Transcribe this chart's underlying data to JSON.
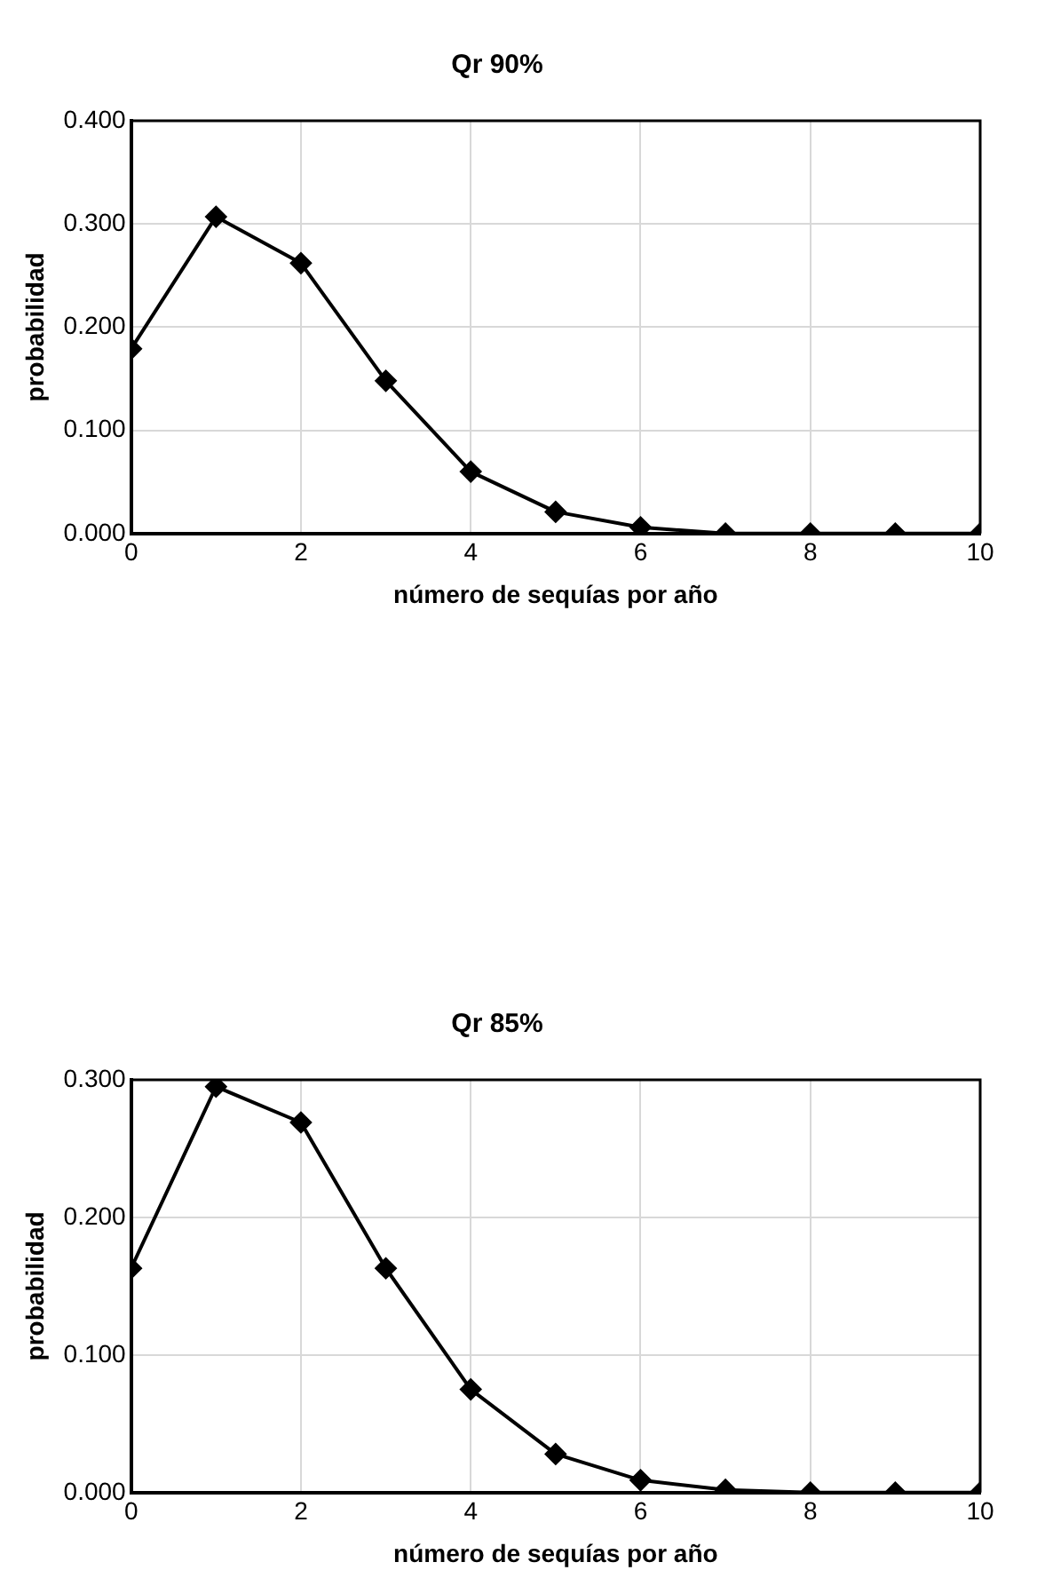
{
  "chart_data": [
    {
      "type": "line",
      "title": "Qr 90%",
      "xlabel": "número de sequías por año",
      "ylabel": "probabilidad",
      "x": [
        0,
        1,
        2,
        3,
        4,
        5,
        6,
        7,
        8,
        9,
        10
      ],
      "series": [
        {
          "color": "#000000",
          "values": [
            0.179,
            0.307,
            0.262,
            0.148,
            0.06,
            0.021,
            0.006,
            0,
            0,
            0,
            0
          ]
        }
      ],
      "xlim": [
        0,
        10
      ],
      "xticks": [
        0,
        2,
        4,
        6,
        8,
        10
      ],
      "ylim": [
        0,
        0.4
      ],
      "yticks": [
        {
          "value": 0,
          "label": "0.000"
        },
        {
          "value": 0.1,
          "label": "0.100"
        },
        {
          "value": 0.2,
          "label": "0.200"
        },
        {
          "value": 0.3,
          "label": "0.300"
        },
        {
          "value": 0.4,
          "label": "0.400"
        }
      ],
      "grid": true,
      "marker": "diamond",
      "line_style": "solid"
    },
    {
      "type": "line",
      "title": "Qr 85%",
      "xlabel": "número de sequías por año",
      "ylabel": "probabilidad",
      "x": [
        0,
        1,
        2,
        3,
        4,
        5,
        6,
        7,
        8,
        9,
        10
      ],
      "series": [
        {
          "color": "#000000",
          "values": [
            0.163,
            0.295,
            0.269,
            0.163,
            0.075,
            0.028,
            0.009,
            0.002,
            0,
            0,
            0
          ]
        }
      ],
      "xlim": [
        0,
        10
      ],
      "xticks": [
        0,
        2,
        4,
        6,
        8,
        10
      ],
      "ylim": [
        0,
        0.3
      ],
      "yticks": [
        {
          "value": 0,
          "label": "0.000"
        },
        {
          "value": 0.1,
          "label": "0.100"
        },
        {
          "value": 0.2,
          "label": "0.200"
        },
        {
          "value": 0.3,
          "label": "0.300"
        }
      ],
      "grid": true,
      "marker": "diamond",
      "line_style": "solid"
    }
  ]
}
